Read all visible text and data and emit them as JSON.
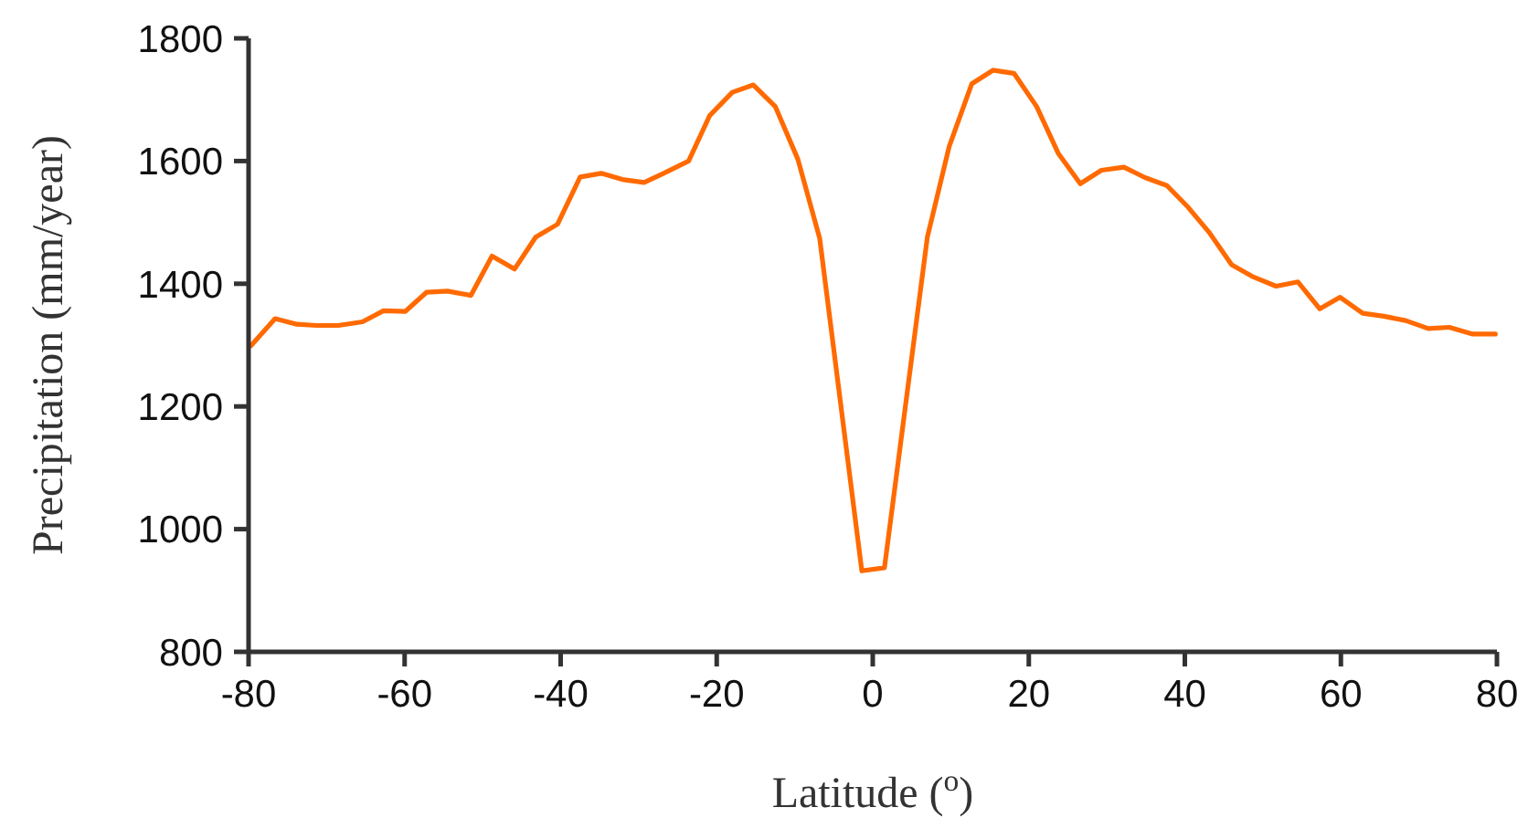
{
  "chart_data": {
    "type": "line",
    "xlabel": "Latitude ($^{o}$)",
    "ylabel": "Precipitation (mm/year)",
    "xlim": [
      -80,
      80
    ],
    "xticks": [
      -80,
      -60,
      -40,
      -20,
      0,
      20,
      40,
      60,
      80
    ],
    "ylim": [
      800,
      1800
    ],
    "yticks": [
      800,
      1000,
      1200,
      1400,
      1600,
      1800
    ],
    "grid": false,
    "marker": "none",
    "line_style": "solid",
    "series": [
      {
        "color": "#ff6a00",
        "x": [
          -79.7,
          -76.6,
          -73.8,
          -71.3,
          -68.5,
          -65.4,
          -62.7,
          -59.9,
          -57.2,
          -54.5,
          -51.5,
          -48.8,
          -45.9,
          -43.2,
          -40.4,
          -37.5,
          -34.8,
          -32.1,
          -29.3,
          -26.8,
          -23.6,
          -20.9,
          -18.0,
          -15.3,
          -12.5,
          -9.6,
          -6.8,
          -1.4,
          1.5,
          7.0,
          9.8,
          12.7,
          15.4,
          18.1,
          21.0,
          23.8,
          26.6,
          29.3,
          32.2,
          34.9,
          37.7,
          40.4,
          43.1,
          46.0,
          48.8,
          51.7,
          54.5,
          57.3,
          59.9,
          62.8,
          65.5,
          68.3,
          71.2,
          73.9,
          76.9,
          79.8
        ],
        "values": [
          1299,
          1343,
          1334,
          1332,
          1332,
          1338,
          1356,
          1355,
          1386,
          1388,
          1381,
          1445,
          1424,
          1476,
          1497,
          1574,
          1580,
          1570,
          1565,
          1580,
          1600,
          1674,
          1712,
          1724,
          1689,
          1603,
          1474,
          932,
          937,
          1476,
          1624,
          1726,
          1748,
          1743,
          1689,
          1612,
          1563,
          1585,
          1590,
          1573,
          1560,
          1525,
          1484,
          1431,
          1411,
          1396,
          1403,
          1359,
          1378,
          1352,
          1347,
          1340,
          1327,
          1329,
          1318,
          1318
        ]
      }
    ]
  }
}
